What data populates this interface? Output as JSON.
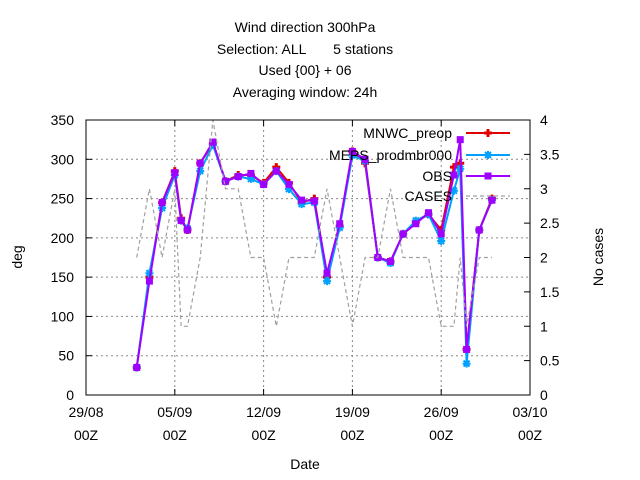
{
  "chart_data": {
    "type": "line",
    "title": [
      "Wind direction 300hPa",
      "Selection: ALL       5 stations",
      "Used {00} + 06",
      "Averaging window: 24h"
    ],
    "xlabel": "Date",
    "ylabel": "deg",
    "y2label": "No cases",
    "xlim": [
      "2022-08-29T00:00",
      "2022-10-03T00:00"
    ],
    "ylim": [
      0,
      350
    ],
    "y2lim": [
      0,
      4
    ],
    "x_ticks": [
      {
        "line1": "29/08",
        "line2": "00Z",
        "date": "2022-08-29T00:00"
      },
      {
        "line1": "05/09",
        "line2": "00Z",
        "date": "2022-09-05T00:00"
      },
      {
        "line1": "12/09",
        "line2": "00Z",
        "date": "2022-09-12T00:00"
      },
      {
        "line1": "19/09",
        "line2": "00Z",
        "date": "2022-09-19T00:00"
      },
      {
        "line1": "26/09",
        "line2": "00Z",
        "date": "2022-09-26T00:00"
      },
      {
        "line1": "03/10",
        "line2": "00Z",
        "date": "2022-10-03T00:00"
      }
    ],
    "y_ticks": [
      "0",
      "50",
      "100",
      "150",
      "200",
      "250",
      "300",
      "350"
    ],
    "y2_ticks": [
      "0",
      "0.5",
      "1",
      "1.5",
      "2",
      "2.5",
      "3",
      "3.5",
      "4"
    ],
    "grid": true,
    "legend_position": "top-right",
    "series": [
      {
        "name": "MNWC_preop",
        "color": "#e00000",
        "marker": "plus",
        "axis": "left",
        "x": [
          "2022-09-02",
          "2022-09-03",
          "2022-09-04",
          "2022-09-05",
          "2022-09-05T12:00",
          "2022-09-06",
          "2022-09-07",
          "2022-09-08",
          "2022-09-09",
          "2022-09-10",
          "2022-09-11",
          "2022-09-12",
          "2022-09-13",
          "2022-09-14",
          "2022-09-15",
          "2022-09-16",
          "2022-09-17",
          "2022-09-18",
          "2022-09-19",
          "2022-09-20",
          "2022-09-21",
          "2022-09-22",
          "2022-09-23",
          "2022-09-24",
          "2022-09-25",
          "2022-09-26",
          "2022-09-27",
          "2022-09-27T12:00",
          "2022-09-28",
          "2022-09-29",
          "2022-09-30"
        ],
        "y": [
          35,
          150,
          245,
          285,
          225,
          210,
          295,
          320,
          272,
          280,
          280,
          270,
          290,
          270,
          245,
          250,
          150,
          215,
          310,
          295,
          175,
          170,
          205,
          220,
          230,
          210,
          290,
          295,
          58,
          210,
          250
        ]
      },
      {
        "name": "MEPS_prodmbr000",
        "color": "#00a0ff",
        "marker": "star",
        "axis": "left",
        "x": [
          "2022-09-02",
          "2022-09-03",
          "2022-09-04",
          "2022-09-05",
          "2022-09-05T12:00",
          "2022-09-06",
          "2022-09-07",
          "2022-09-08",
          "2022-09-09",
          "2022-09-10",
          "2022-09-11",
          "2022-09-12",
          "2022-09-13",
          "2022-09-14",
          "2022-09-15",
          "2022-09-16",
          "2022-09-17",
          "2022-09-18",
          "2022-09-19",
          "2022-09-20",
          "2022-09-21",
          "2022-09-22",
          "2022-09-23",
          "2022-09-24",
          "2022-09-25",
          "2022-09-26",
          "2022-09-27",
          "2022-09-27T12:00",
          "2022-09-28",
          "2022-09-29",
          "2022-09-30"
        ],
        "y": [
          35,
          155,
          238,
          280,
          222,
          212,
          285,
          318,
          272,
          278,
          275,
          268,
          285,
          262,
          243,
          245,
          145,
          213,
          305,
          298,
          175,
          168,
          205,
          222,
          230,
          196,
          260,
          288,
          40,
          210,
          248
        ]
      },
      {
        "name": "OBS",
        "color": "#a000ff",
        "marker": "square",
        "axis": "left",
        "x": [
          "2022-09-02",
          "2022-09-03",
          "2022-09-04",
          "2022-09-05",
          "2022-09-05T12:00",
          "2022-09-06",
          "2022-09-07",
          "2022-09-08",
          "2022-09-09",
          "2022-09-10",
          "2022-09-11",
          "2022-09-12",
          "2022-09-13",
          "2022-09-14",
          "2022-09-15",
          "2022-09-16",
          "2022-09-17",
          "2022-09-18",
          "2022-09-19",
          "2022-09-20",
          "2022-09-21",
          "2022-09-22",
          "2022-09-23",
          "2022-09-24",
          "2022-09-25",
          "2022-09-26",
          "2022-09-27",
          "2022-09-27T12:00",
          "2022-09-28",
          "2022-09-29",
          "2022-09-30"
        ],
        "y": [
          35,
          145,
          245,
          283,
          222,
          210,
          295,
          322,
          272,
          278,
          282,
          268,
          285,
          268,
          248,
          247,
          155,
          218,
          310,
          300,
          175,
          170,
          205,
          218,
          232,
          205,
          280,
          325,
          58,
          210,
          248
        ]
      },
      {
        "name": "CASES",
        "color": "#a0a0a0",
        "marker": "none",
        "axis": "right",
        "x": [
          "2022-09-02",
          "2022-09-03",
          "2022-09-04",
          "2022-09-05",
          "2022-09-05T12:00",
          "2022-09-06",
          "2022-09-07",
          "2022-09-08",
          "2022-09-09",
          "2022-09-10",
          "2022-09-11",
          "2022-09-12",
          "2022-09-13",
          "2022-09-14",
          "2022-09-15",
          "2022-09-16",
          "2022-09-17",
          "2022-09-18",
          "2022-09-19",
          "2022-09-20",
          "2022-09-21",
          "2022-09-22",
          "2022-09-23",
          "2022-09-24",
          "2022-09-25",
          "2022-09-26",
          "2022-09-27",
          "2022-09-27T12:00",
          "2022-09-28",
          "2022-09-29",
          "2022-09-30"
        ],
        "y": [
          2,
          3,
          2,
          3,
          1,
          1,
          2,
          4,
          3,
          3,
          2,
          2,
          1,
          2,
          2,
          2,
          3,
          2,
          1,
          2,
          2,
          3,
          2,
          2,
          2,
          1,
          1,
          2,
          1,
          2,
          2
        ]
      }
    ]
  }
}
